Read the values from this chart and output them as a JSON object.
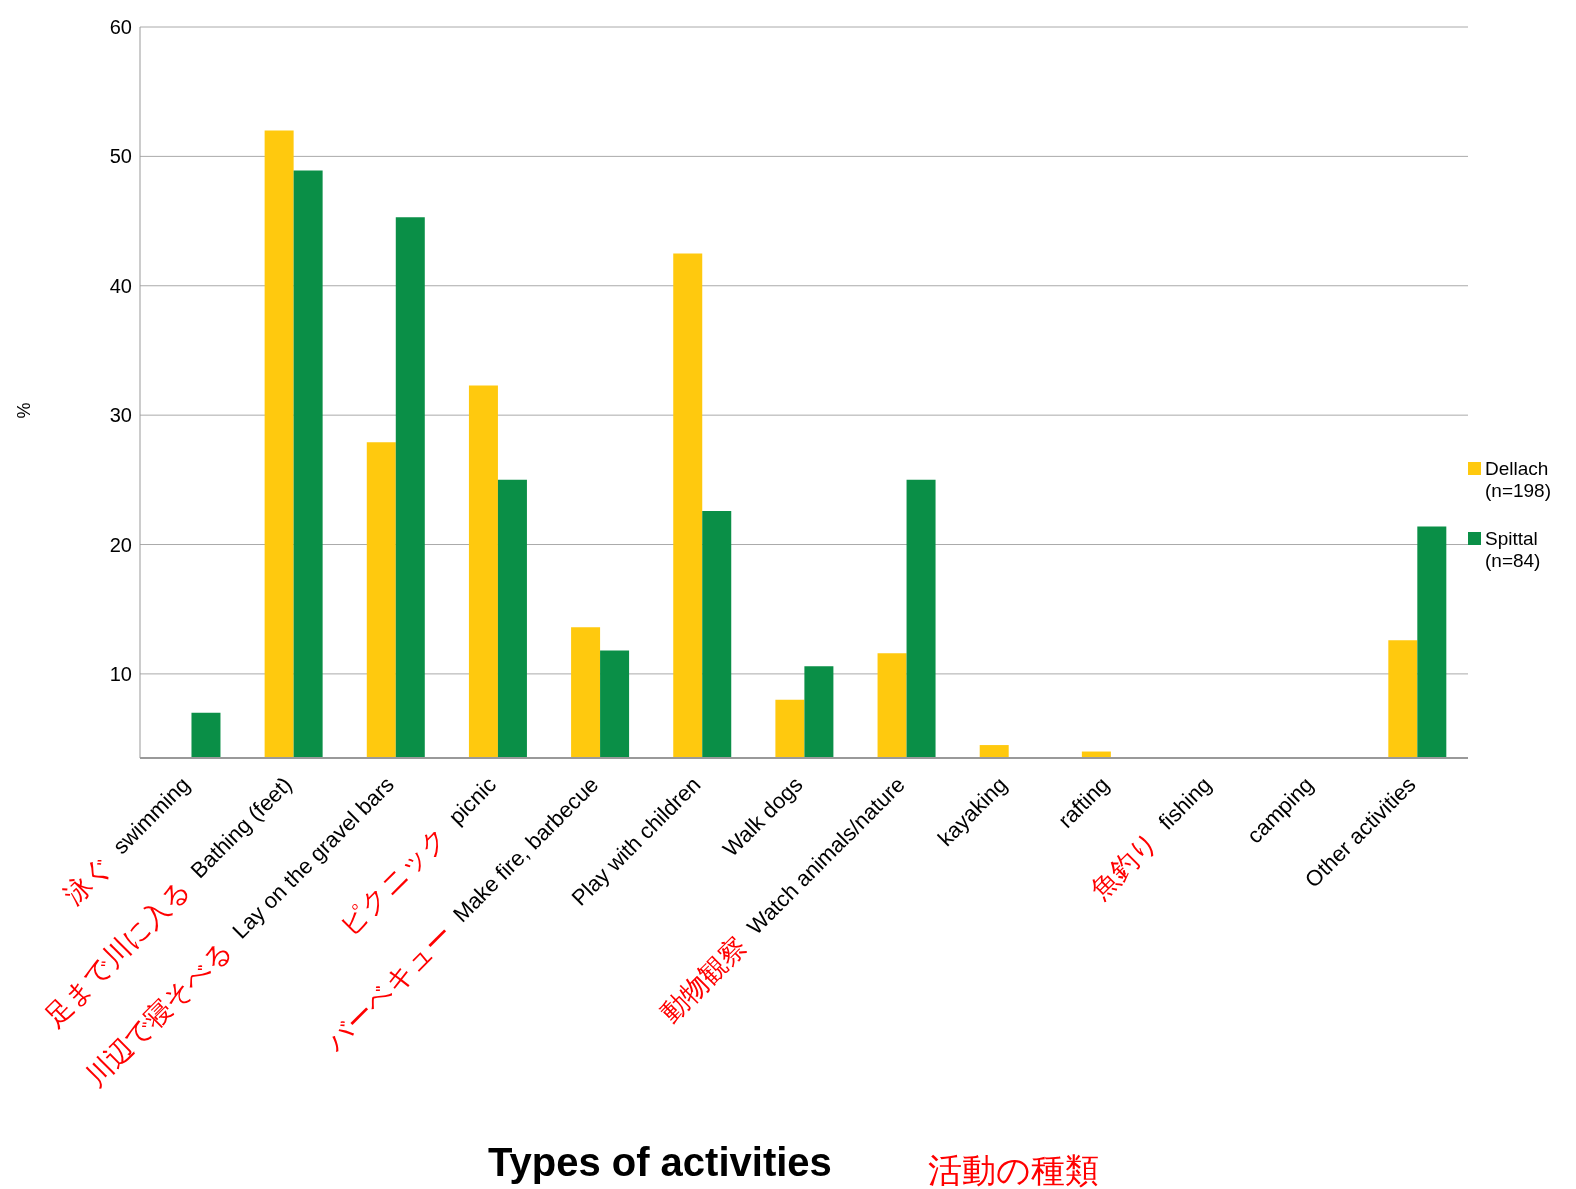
{
  "chart_data": {
    "type": "bar",
    "xlabel": "Types of activities",
    "ylabel": "%",
    "categories": [
      "swimming",
      "Bathing (feet)",
      "Lay on the gravel bars",
      "picnic",
      "Make fire, barbecue",
      "Play with children",
      "Walk dogs",
      "Watch animals/nature",
      "kayaking",
      "rafting",
      "fishing",
      "camping",
      "Other activities"
    ],
    "series": [
      {
        "name": "Dellach (n=198)",
        "color": "#ffc90e",
        "values": [
          null,
          52,
          27.9,
          32.3,
          13.6,
          42.5,
          8,
          11.6,
          4.5,
          4,
          null,
          null,
          12.6
        ]
      },
      {
        "name": "Spittal (n=84)",
        "color": "#0a8f47",
        "values": [
          7,
          48.9,
          45.3,
          25,
          11.8,
          22.6,
          10.6,
          25,
          null,
          null,
          null,
          null,
          21.4
        ]
      }
    ],
    "ylim": [
      3.5,
      60
    ],
    "yticks": [
      10,
      20,
      30,
      40,
      50,
      60
    ],
    "grid": "y",
    "legend": "right",
    "annotations": [
      "泳ぐ",
      "足まで川に入る",
      "川辺で寝そべる",
      "ピクニック",
      "バーベキュー",
      "動物観察",
      "魚釣り",
      "活動の種類"
    ]
  }
}
